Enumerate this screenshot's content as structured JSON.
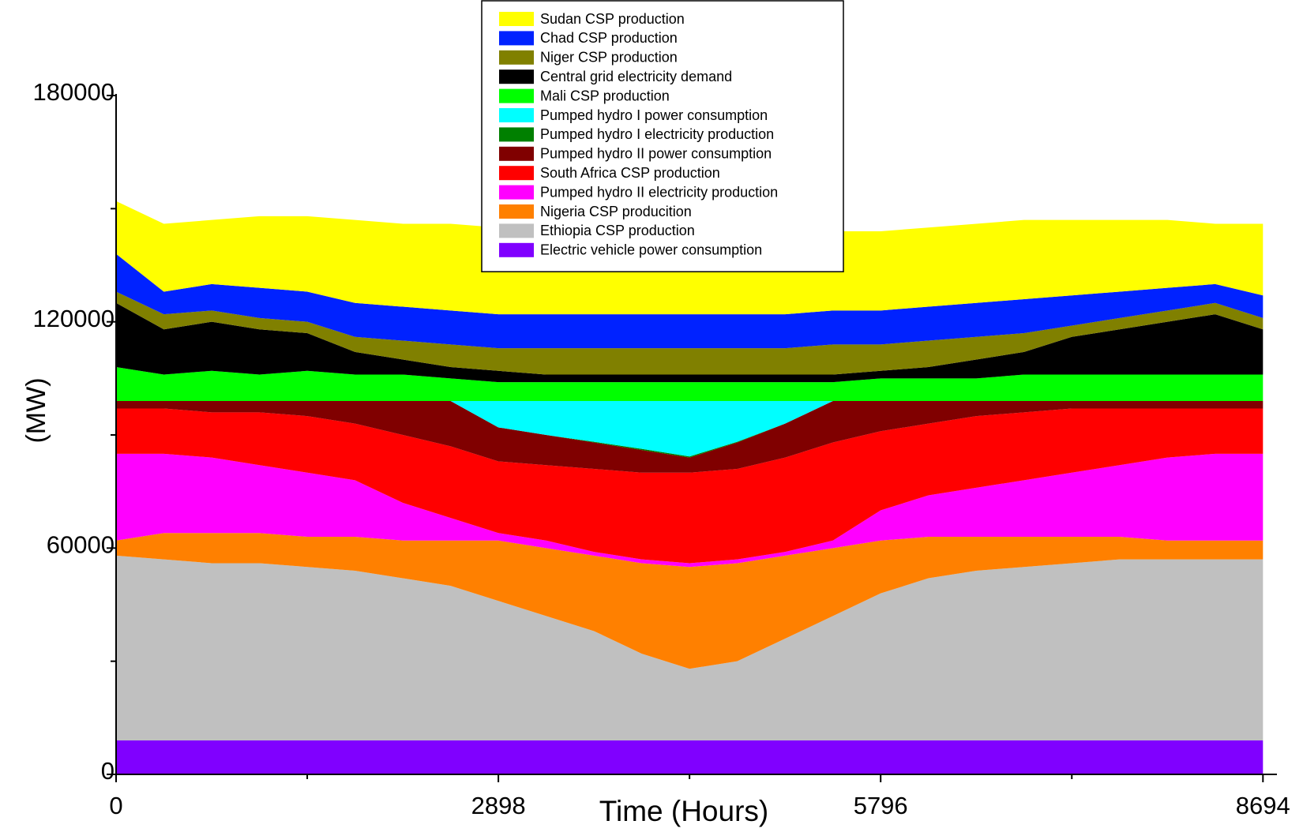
{
  "chart_data": {
    "type": "stacked_area",
    "x_label": "Time (Hours)",
    "y_label": "(MW)",
    "xlim": [
      0,
      8800
    ],
    "xticks": [
      0,
      2898,
      5796,
      8694
    ],
    "xminor": [
      1449,
      4347,
      7245
    ],
    "ylim": [
      0,
      180000
    ],
    "yticks": [
      0,
      60000,
      120000,
      180000
    ],
    "yminor": [
      30000,
      90000,
      150000
    ],
    "legend": "top",
    "x": [
      0,
      362,
      725,
      1087,
      1449,
      1811,
      2174,
      2536,
      2898,
      3260,
      3623,
      3985,
      4347,
      4709,
      5072,
      5434,
      5796,
      6158,
      6521,
      6883,
      7245,
      7607,
      7970,
      8332,
      8694
    ],
    "series": [
      {
        "name": "Sudan CSP production",
        "color": "#ffff00",
        "values": [
          14000,
          18000,
          17000,
          19000,
          20000,
          22000,
          22000,
          23000,
          23000,
          23000,
          23000,
          22000,
          22000,
          21000,
          21000,
          21000,
          21000,
          21000,
          21000,
          21000,
          20000,
          19000,
          18000,
          16000,
          19000
        ]
      },
      {
        "name": "Chad CSP production",
        "color": "#0022ff",
        "values": [
          10000,
          6000,
          7000,
          8000,
          8000,
          9000,
          9000,
          9000,
          9000,
          9000,
          9000,
          9000,
          9000,
          9000,
          9000,
          9000,
          9000,
          9000,
          9000,
          9000,
          8000,
          7000,
          6000,
          5000,
          6000
        ]
      },
      {
        "name": "Niger CSP production",
        "color": "#808000",
        "values": [
          3000,
          4000,
          3000,
          3000,
          3000,
          4000,
          5000,
          6000,
          6000,
          7000,
          7000,
          7000,
          7000,
          7000,
          7000,
          8000,
          7000,
          7000,
          6000,
          5000,
          3000,
          3000,
          3000,
          3000,
          3000
        ]
      },
      {
        "name": "Central grid electricity demand",
        "color": "#000000",
        "values": [
          17000,
          12000,
          13000,
          12000,
          10000,
          6000,
          4000,
          3000,
          3000,
          2000,
          2000,
          2000,
          2000,
          2000,
          2000,
          2000,
          2000,
          3000,
          5000,
          6000,
          10000,
          12000,
          14000,
          16000,
          12000
        ]
      },
      {
        "name": "Mali CSP production",
        "color": "#00ff00",
        "values": [
          9000,
          7000,
          8000,
          7000,
          8000,
          7000,
          7000,
          6000,
          5000,
          5000,
          5000,
          5000,
          5000,
          5000,
          5000,
          5000,
          6000,
          6000,
          6000,
          7000,
          7000,
          7000,
          7000,
          7000,
          7000
        ]
      },
      {
        "name": "Pumped  hydro I power consumption",
        "color": "#00ffff",
        "values": [
          0,
          0,
          0,
          0,
          0,
          0,
          0,
          0,
          7000,
          9000,
          10800,
          12700,
          14700,
          10800,
          6000,
          0,
          0,
          0,
          0,
          0,
          0,
          0,
          0,
          0,
          0
        ]
      },
      {
        "name": "Pumped hydro I electricity production",
        "color": "#008000",
        "values": [
          0,
          0,
          0,
          0,
          0,
          0,
          0,
          0,
          0,
          0,
          200,
          300,
          300,
          200,
          0,
          0,
          0,
          0,
          0,
          0,
          0,
          0,
          0,
          0,
          0
        ]
      },
      {
        "name": "Pumped  hydro II power consumption",
        "color": "#800000",
        "values": [
          2000,
          2000,
          3000,
          3000,
          4000,
          6000,
          9000,
          12000,
          9000,
          8000,
          7000,
          6000,
          4000,
          7000,
          9000,
          11000,
          8000,
          6000,
          4000,
          3000,
          2000,
          2000,
          2000,
          2000,
          2000
        ]
      },
      {
        "name": "South Africa CSP production",
        "color": "#ff0000",
        "values": [
          12000,
          12000,
          12000,
          14000,
          15000,
          15000,
          18000,
          19000,
          19000,
          20000,
          22000,
          23000,
          24000,
          24000,
          25000,
          26000,
          21000,
          19000,
          19000,
          18000,
          17000,
          15000,
          13000,
          12000,
          12000
        ]
      },
      {
        "name": "Pumped hydro II electricity production",
        "color": "#ff00ff",
        "values": [
          23000,
          21000,
          20000,
          18000,
          17000,
          15000,
          10000,
          6000,
          2000,
          2000,
          1000,
          1000,
          1000,
          1000,
          1000,
          2000,
          8000,
          11000,
          13000,
          15000,
          17000,
          19000,
          22000,
          23000,
          23000
        ]
      },
      {
        "name": "Nigeria CSP producition",
        "color": "#ff8000",
        "values": [
          4000,
          7000,
          8000,
          8000,
          8000,
          9000,
          10000,
          12000,
          16000,
          18000,
          20000,
          24000,
          27000,
          26000,
          22000,
          18000,
          14000,
          11000,
          9000,
          8000,
          7000,
          6000,
          5000,
          5000,
          5000
        ]
      },
      {
        "name": "Ethiopia CSP production",
        "color": "#c0c0c0",
        "values": [
          49000,
          48000,
          47000,
          47000,
          46000,
          45000,
          43000,
          41000,
          37000,
          33000,
          29000,
          23000,
          19000,
          21000,
          27000,
          33000,
          39000,
          43000,
          45000,
          46000,
          47000,
          48000,
          48000,
          48000,
          48000
        ]
      },
      {
        "name": "Electric vehicle power consumption",
        "color": "#8000ff",
        "values": [
          9000,
          9000,
          9000,
          9000,
          9000,
          9000,
          9000,
          9000,
          9000,
          9000,
          9000,
          9000,
          9000,
          9000,
          9000,
          9000,
          9000,
          9000,
          9000,
          9000,
          9000,
          9000,
          9000,
          9000,
          9000
        ]
      }
    ]
  }
}
